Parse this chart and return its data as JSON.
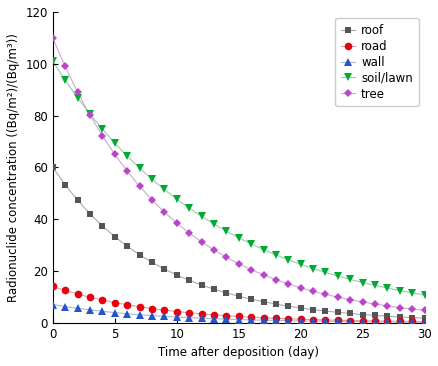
{
  "xlabel": "Time after deposition (day)",
  "ylabel": "Radionuclide concentration ((Bq/m²)/(Bq/m³))",
  "xlim": [
    0,
    30
  ],
  "ylim": [
    0,
    120
  ],
  "yticks": [
    0,
    20,
    40,
    60,
    80,
    100,
    120
  ],
  "xticks": [
    0,
    5,
    10,
    15,
    20,
    25,
    30
  ],
  "series": [
    {
      "label": "roof",
      "color": "#555555",
      "marker": "s",
      "markersize": 4.5,
      "linecolor": "#aaaaaa",
      "linewidth": 0.8,
      "y0": 60.0,
      "lambda": 0.118
    },
    {
      "label": "road",
      "color": "#e8000d",
      "marker": "o",
      "markersize": 5.5,
      "linecolor": "#ccaaaa",
      "linewidth": 0.8,
      "y0": 14.0,
      "lambda": 0.118
    },
    {
      "label": "wall",
      "color": "#2255cc",
      "marker": "^",
      "markersize": 5.5,
      "linecolor": "#aabbcc",
      "linewidth": 0.8,
      "y0": 7.0,
      "lambda": 0.118
    },
    {
      "label": "soil/lawn",
      "color": "#00aa33",
      "marker": "v",
      "markersize": 5.5,
      "linecolor": "#99ccaa",
      "linewidth": 0.8,
      "y0": 101.0,
      "lambda": 0.075
    },
    {
      "label": "tree",
      "color": "#bb44cc",
      "marker": "D",
      "markersize": 4.5,
      "linecolor": "#ccaacc",
      "linewidth": 0.8,
      "y0": 110.0,
      "lambda": 0.105
    }
  ],
  "legend_loc": "upper right",
  "legend_fontsize": 8.5,
  "tick_fontsize": 8.5,
  "label_fontsize": 8.5,
  "figsize": [
    4.39,
    3.66
  ],
  "dpi": 100
}
